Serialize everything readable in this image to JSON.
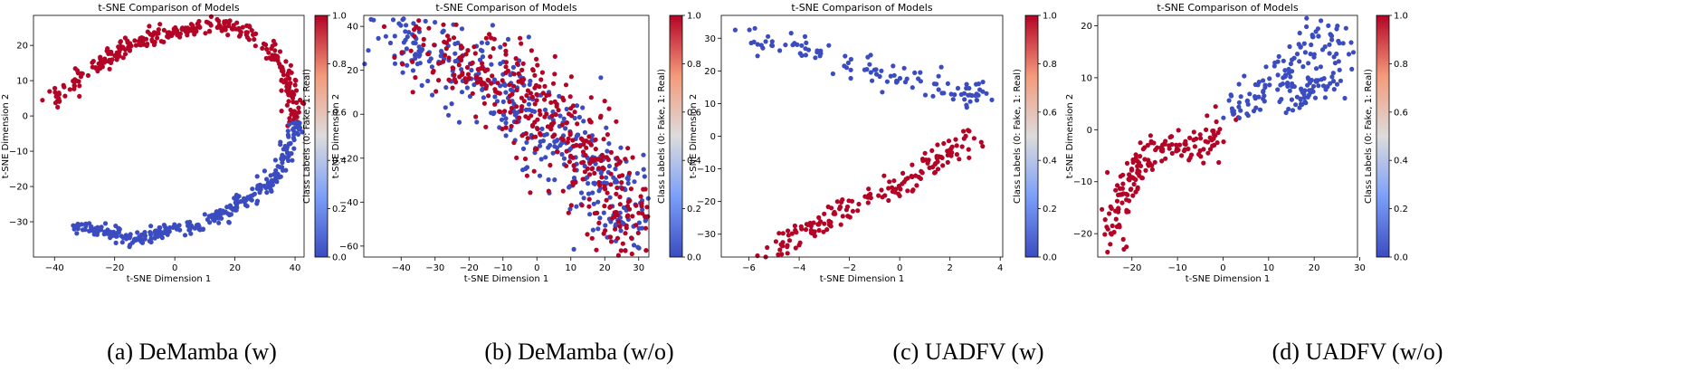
{
  "chart_data": [
    {
      "type": "scatter",
      "title": "t-SNE Comparison of Models",
      "xlabel": "t-SNE Dimension 1",
      "ylabel": "t-SNE Dimension 2",
      "caption": "(a) DeMamba (w)",
      "xlim": [
        -47,
        43
      ],
      "ylim": [
        -40,
        28.5
      ],
      "xticks": [
        -40,
        -20,
        0,
        20,
        40
      ],
      "yticks": [
        -30,
        -20,
        -10,
        0,
        10,
        20
      ],
      "colorbar": {
        "label": "Class Labels (0: Fake, 1: Real)",
        "ticks": [
          "0.0",
          "0.2",
          "0.4",
          "0.6",
          "0.8",
          "1.0"
        ],
        "min": 0,
        "max": 1
      },
      "clusters": [
        {
          "label": 1,
          "count": 330,
          "seed": 11,
          "spread": 1.6,
          "path": [
            [
              -43,
              3
            ],
            [
              -37,
              8
            ],
            [
              -28,
              13
            ],
            [
              -18,
              19
            ],
            [
              -8,
              22
            ],
            [
              0,
              24
            ],
            [
              10,
              26
            ],
            [
              22,
              25
            ],
            [
              30,
              20
            ],
            [
              36,
              14
            ],
            [
              40,
              5
            ],
            [
              40,
              -2
            ]
          ]
        },
        {
          "label": 0,
          "count": 300,
          "seed": 12,
          "spread": 1.5,
          "path": [
            [
              40,
              -2
            ],
            [
              38,
              -10
            ],
            [
              34,
              -17
            ],
            [
              27,
              -22
            ],
            [
              17,
              -27
            ],
            [
              7,
              -31
            ],
            [
              -4,
              -33
            ],
            [
              -14,
              -35
            ],
            [
              -25,
              -32
            ],
            [
              -33,
              -31
            ]
          ]
        }
      ]
    },
    {
      "type": "scatter",
      "title": "t-SNE Comparison of Models",
      "xlabel": "t-SNE Dimension 1",
      "ylabel": "t-SNE Dimension 2",
      "caption": "(b) DeMamba (w/o)",
      "xlim": [
        -51,
        33
      ],
      "ylim": [
        -65,
        45
      ],
      "xticks": [
        -40,
        -30,
        -20,
        -10,
        0,
        10,
        20,
        30
      ],
      "yticks": [
        -60,
        -40,
        -20,
        0,
        20,
        40
      ],
      "colorbar": {
        "label": "Class Labels (0: Fake, 1: Real)",
        "ticks": [
          "0.0",
          "0.2",
          "0.4",
          "0.6",
          "0.8",
          "1.0"
        ],
        "min": 0,
        "max": 1
      },
      "clusters": [
        {
          "label": 0,
          "count": 420,
          "seed": 21,
          "spread": 7,
          "path": [
            [
              -47,
              40
            ],
            [
              -35,
              33
            ],
            [
              -25,
              26
            ],
            [
              -15,
              16
            ],
            [
              -5,
              5
            ],
            [
              5,
              -8
            ],
            [
              15,
              -22
            ],
            [
              25,
              -40
            ],
            [
              30,
              -58
            ]
          ]
        },
        {
          "label": 1,
          "count": 400,
          "seed": 22,
          "spread": 7,
          "path": [
            [
              -30,
              30
            ],
            [
              -15,
              22
            ],
            [
              -5,
              12
            ],
            [
              3,
              0
            ],
            [
              10,
              -15
            ],
            [
              18,
              -28
            ],
            [
              25,
              -42
            ],
            [
              30,
              -55
            ]
          ]
        }
      ]
    },
    {
      "type": "scatter",
      "title": "t-SNE Comparison of Models",
      "xlabel": "t-SNE Dimension 1",
      "ylabel": "t-SNE Dimension 2",
      "caption": "(c) UADFV (w)",
      "xlim": [
        -7.1,
        4.1
      ],
      "ylim": [
        -37,
        37
      ],
      "xticks": [
        -6,
        -4,
        -2,
        0,
        2,
        4
      ],
      "yticks": [
        -30,
        -20,
        -10,
        0,
        10,
        20,
        30
      ],
      "colorbar": {
        "label": "Class Labels (0: Fake, 1: Real)",
        "ticks": [
          "0.0",
          "0.2",
          "0.4",
          "0.6",
          "0.8",
          "1.0"
        ],
        "min": 0,
        "max": 1
      },
      "clusters": [
        {
          "label": 0,
          "count": 110,
          "seed": 31,
          "spread": 0.35,
          "path": [
            [
              -6.5,
              33
            ],
            [
              -5.5,
              30
            ],
            [
              -4,
              28
            ],
            [
              -2.5,
              23
            ],
            [
              -1,
              20
            ],
            [
              0.5,
              17
            ],
            [
              1.8,
              14
            ],
            [
              2.8,
              10
            ],
            [
              3.2,
              14
            ]
          ]
        },
        {
          "label": 1,
          "count": 170,
          "seed": 32,
          "spread": 0.35,
          "path": [
            [
              -5.2,
              -34
            ],
            [
              -4,
              -31
            ],
            [
              -3,
              -27
            ],
            [
              -2,
              -22
            ],
            [
              -1,
              -18
            ],
            [
              0,
              -14
            ],
            [
              1,
              -10
            ],
            [
              2,
              -5
            ],
            [
              3,
              0
            ]
          ]
        }
      ]
    },
    {
      "type": "scatter",
      "title": "t-SNE Comparison of Models",
      "xlabel": "t-SNE Dimension 1",
      "ylabel": "t-SNE Dimension 2",
      "caption": "(d) UADFV (w/o)",
      "xlim": [
        -27.5,
        29.5
      ],
      "ylim": [
        -24.5,
        22
      ],
      "xticks": [
        -20,
        -10,
        0,
        10,
        20,
        30
      ],
      "yticks": [
        -20,
        -10,
        0,
        10,
        20
      ],
      "colorbar": {
        "label": "Class Labels (0: Fake, 1: Real)",
        "ticks": [
          "0.0",
          "0.2",
          "0.4",
          "0.6",
          "0.8",
          "1.0"
        ],
        "min": 0,
        "max": 1
      },
      "clusters": [
        {
          "label": 1,
          "count": 170,
          "seed": 41,
          "spread": 2.2,
          "path": [
            [
              -25,
              -22
            ],
            [
              -22,
              -15
            ],
            [
              -20,
              -8
            ],
            [
              -16,
              -4
            ],
            [
              -12,
              -3
            ],
            [
              -8,
              -3
            ],
            [
              -5,
              -4
            ],
            [
              0,
              2
            ]
          ]
        },
        {
          "label": 0,
          "count": 180,
          "seed": 42,
          "spread": 2.2,
          "path": [
            [
              0,
              3
            ],
            [
              5,
              5
            ],
            [
              10,
              9
            ],
            [
              15,
              14
            ],
            [
              20,
              18
            ],
            [
              25,
              19
            ],
            [
              24,
              12
            ],
            [
              20,
              8
            ],
            [
              15,
              6
            ],
            [
              25,
              9
            ]
          ]
        }
      ]
    }
  ]
}
